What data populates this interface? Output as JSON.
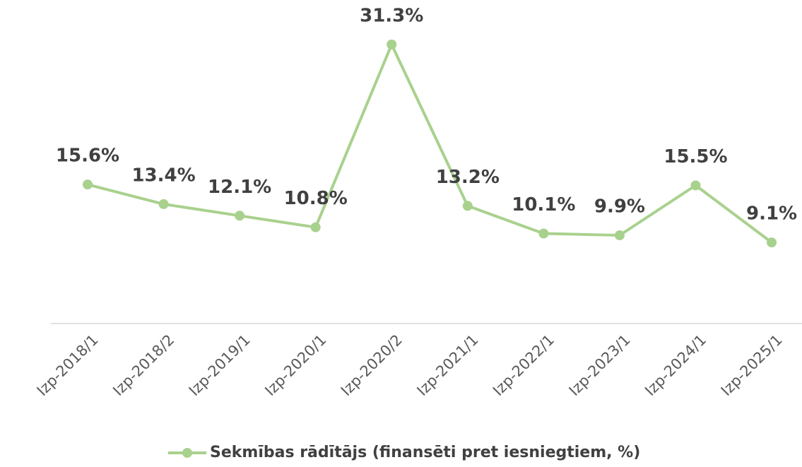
{
  "chart_data": {
    "type": "line",
    "categories": [
      "Izp-2018/1",
      "Izp-2018/2",
      "Izp-2019/1",
      "Izp-2020/1",
      "Izp-2020/2",
      "Izp-2021/1",
      "Izp-2022/1",
      "Izp-2023/1",
      "Izp-2024/1",
      "Izp-2025/1"
    ],
    "series": [
      {
        "name": "Sekmības rādītājs (finansēti pret iesniegtiem, %)",
        "color": "#a9d18e",
        "values": [
          15.6,
          13.4,
          12.1,
          10.8,
          31.3,
          13.2,
          10.1,
          9.9,
          15.5,
          9.1
        ],
        "value_labels": [
          "15.6%",
          "13.4%",
          "12.1%",
          "10.8%",
          "31.3%",
          "13.2%",
          "10.1%",
          "9.9%",
          "15.5%",
          "9.1%"
        ]
      }
    ],
    "legend": "bottom"
  }
}
